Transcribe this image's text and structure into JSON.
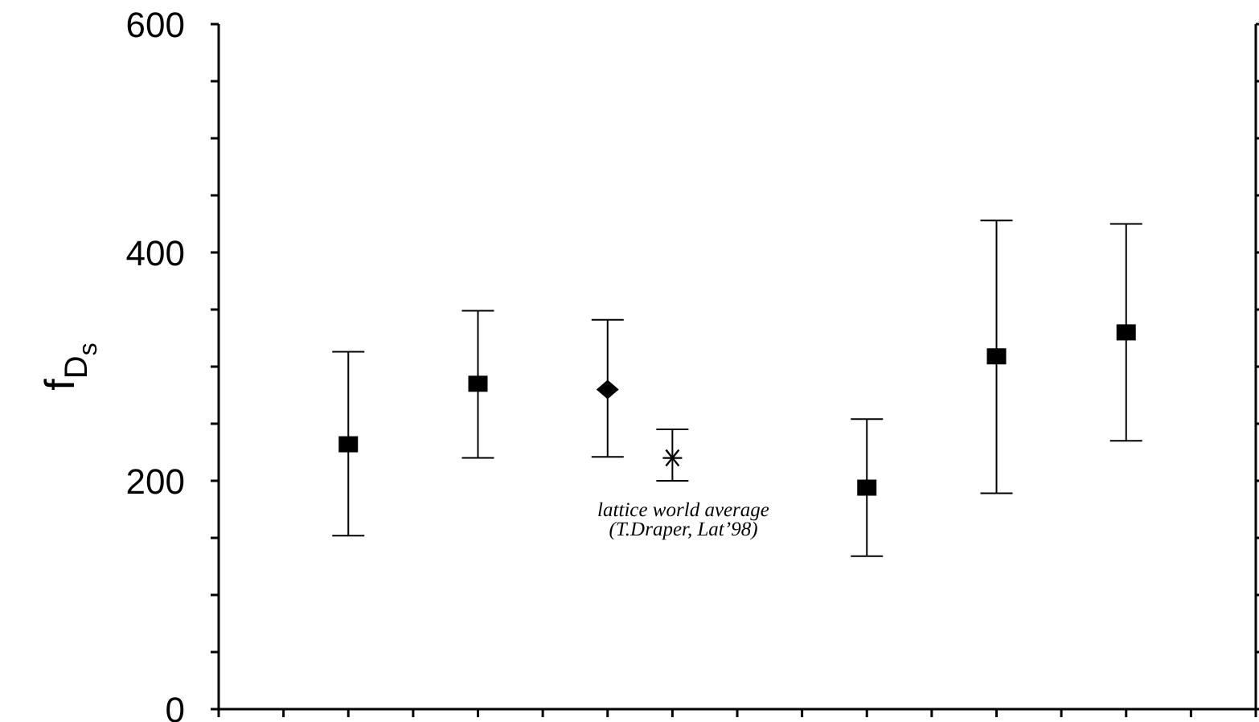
{
  "chart_data": {
    "type": "scatter",
    "ylabel": "f$_{D}$$_{s}$",
    "categories": [
      null,
      null,
      null,
      null,
      null,
      null,
      null,
      null,
      null,
      null,
      null,
      null,
      null,
      null,
      null
    ],
    "series": [
      {
        "color": "#000000",
        "marker": "square",
        "values": [
          null,
          232,
          null,
          285,
          null,
          null,
          null,
          null,
          null,
          194,
          null,
          309,
          null,
          330,
          null
        ],
        "errors": [
          null,
          [
            152,
            313
          ],
          null,
          [
            220,
            349
          ],
          null,
          null,
          null,
          null,
          null,
          [
            134,
            254
          ],
          null,
          [
            189,
            428
          ],
          null,
          [
            235,
            425
          ],
          null
        ]
      },
      {
        "color": "#000000",
        "marker": "diamond",
        "values": [
          null,
          null,
          null,
          null,
          null,
          280,
          null,
          null,
          null,
          null,
          null,
          null,
          null,
          null,
          null
        ],
        "errors": [
          null,
          null,
          null,
          null,
          null,
          [
            221,
            341
          ],
          null,
          null,
          null,
          null,
          null,
          null,
          null,
          null,
          null
        ]
      },
      {
        "color": "#000000",
        "marker": "cross",
        "values": [
          null,
          null,
          null,
          null,
          null,
          null,
          220,
          null,
          null,
          null,
          null,
          null,
          null,
          null,
          null
        ],
        "errors": [
          null,
          null,
          null,
          null,
          null,
          null,
          [
            200,
            245
          ],
          null,
          null,
          null,
          null,
          null,
          null,
          null,
          null
        ]
      }
    ],
    "ylim": [
      0,
      600
    ],
    "yticks": [
      0,
      {
        "value": 50,
        "label": null
      },
      {
        "value": 100,
        "label": null
      },
      {
        "value": 150,
        "label": null
      },
      200,
      {
        "value": 250,
        "label": null
      },
      {
        "value": 300,
        "label": null
      },
      {
        "value": 350,
        "label": null
      },
      400,
      {
        "value": 450,
        "label": null
      },
      {
        "value": 500,
        "label": null
      },
      {
        "value": 550,
        "label": null
      },
      600
    ],
    "tick_labels": "y",
    "annotations": [
      "lattice world average",
      "(T.Draper, Lat’98)"
    ]
  }
}
